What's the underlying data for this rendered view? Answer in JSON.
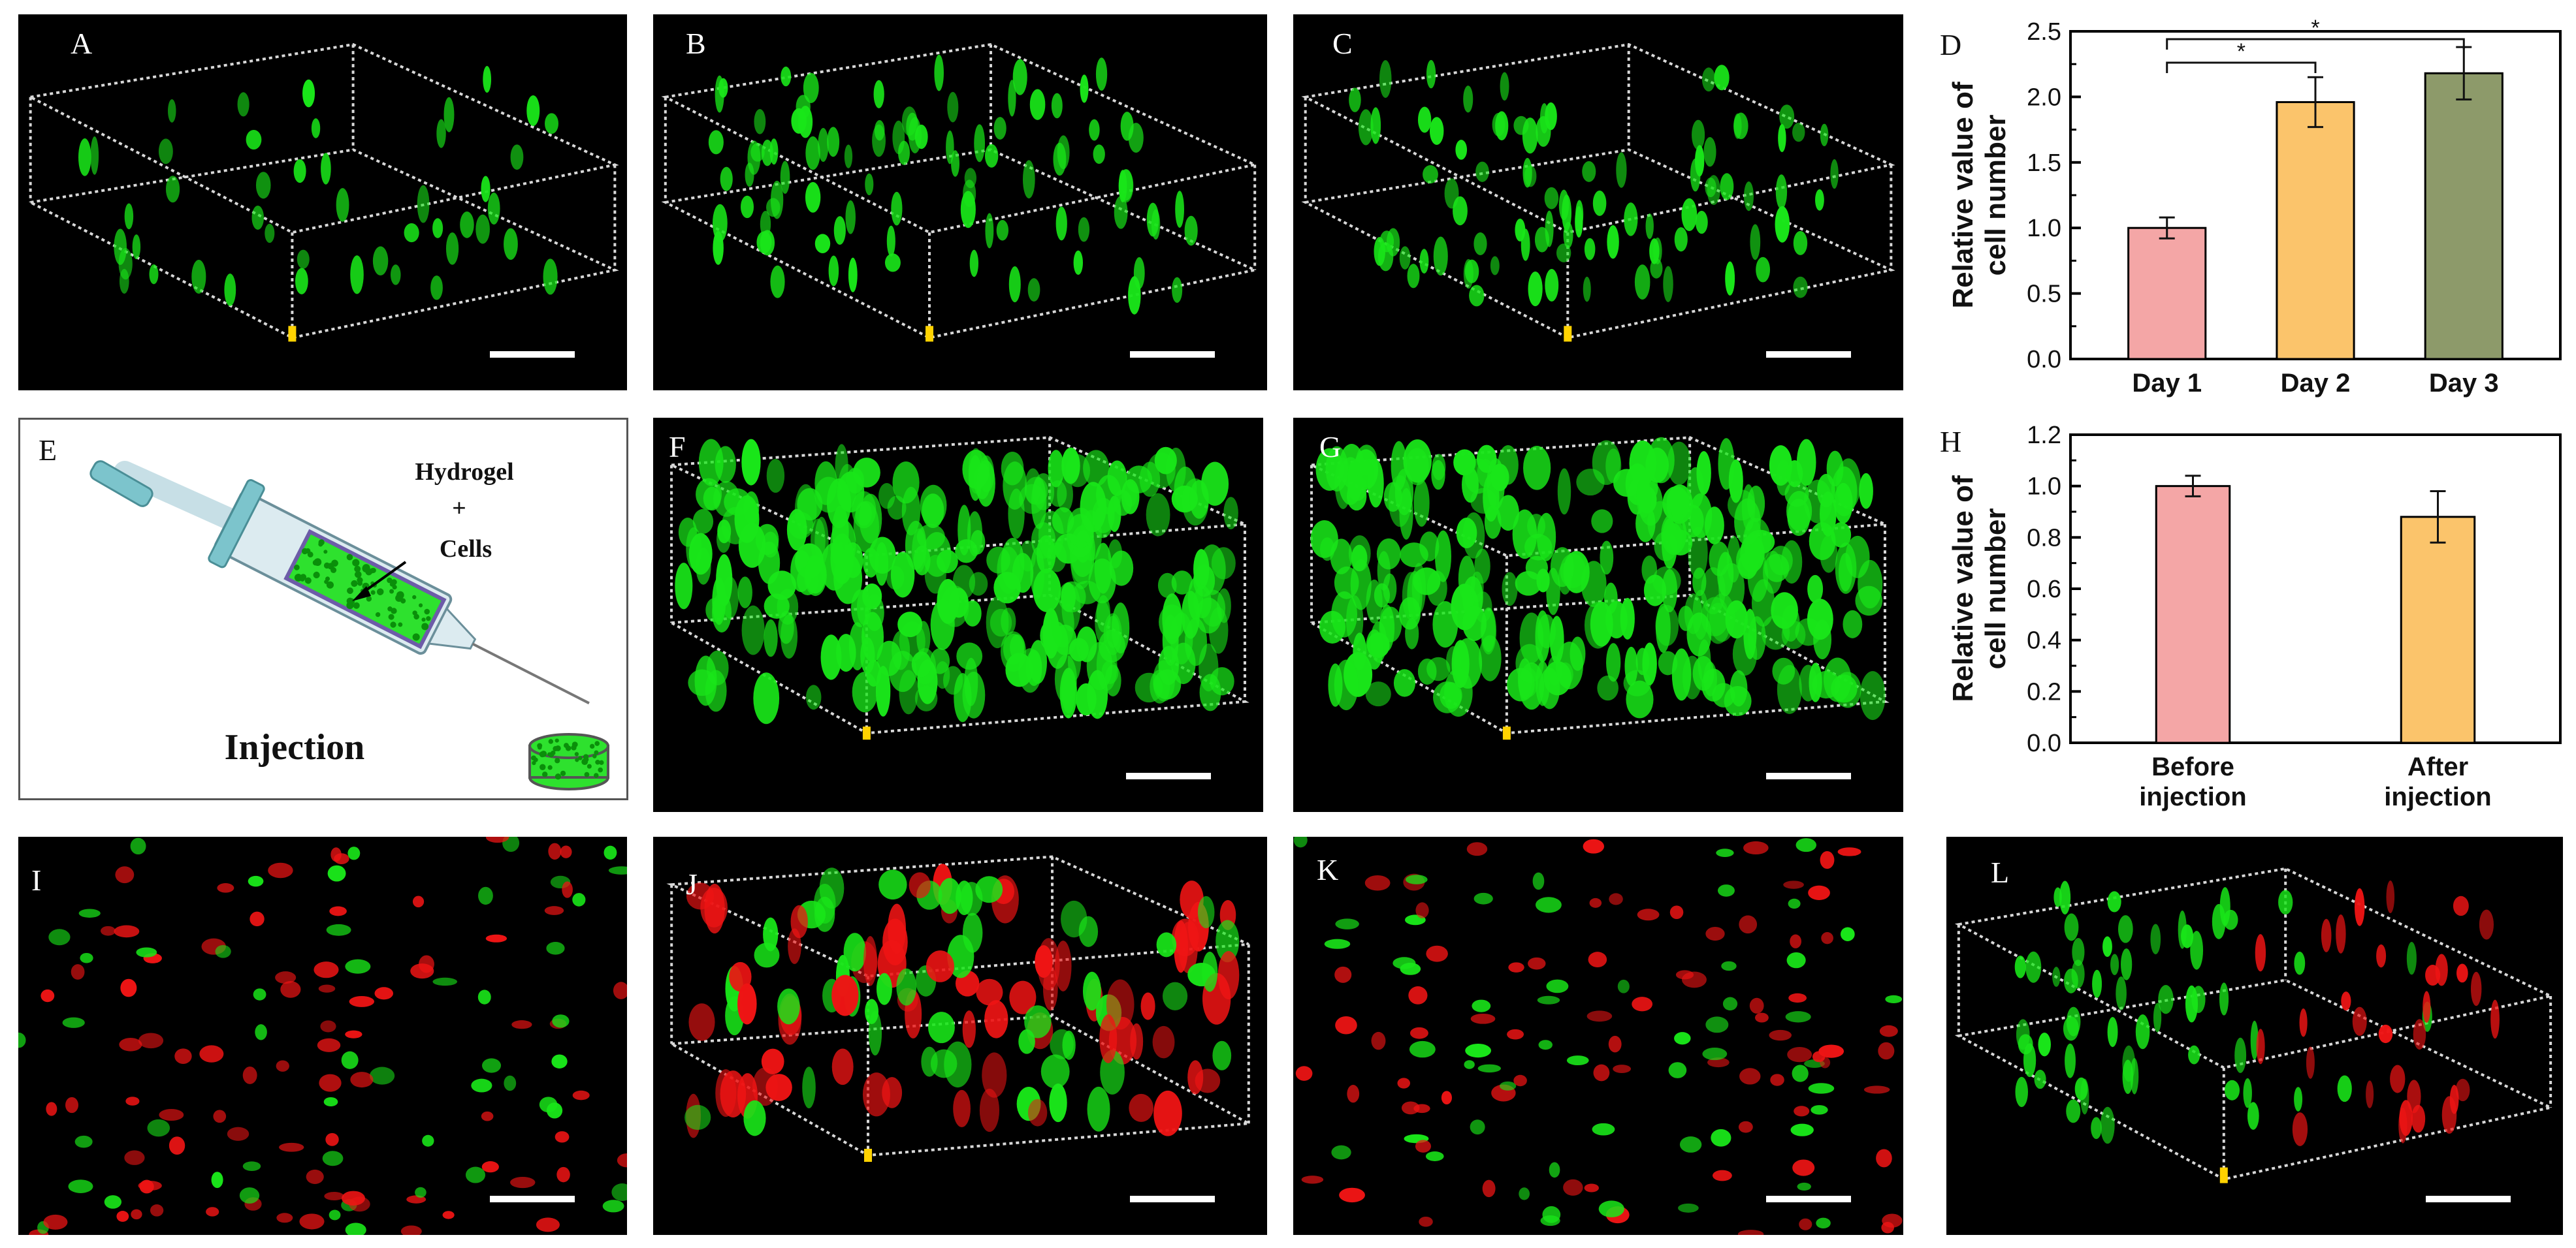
{
  "panels": {
    "A": {
      "label": "A"
    },
    "B": {
      "label": "B"
    },
    "C": {
      "label": "C"
    },
    "D": {
      "label": "D"
    },
    "E": {
      "label": "E",
      "hydrogel": "Hydrogel",
      "plus": "+",
      "cells": "Cells",
      "injection": "Injection"
    },
    "F": {
      "label": "F"
    },
    "G": {
      "label": "G"
    },
    "H": {
      "label": "H"
    },
    "I": {
      "label": "I"
    },
    "J": {
      "label": "J"
    },
    "K": {
      "label": "K"
    },
    "L": {
      "label": "L"
    }
  },
  "colors": {
    "green": "#19e619",
    "red": "#ee1414",
    "yellow": "#ffd200"
  },
  "chart_data": [
    {
      "id": "D",
      "type": "bar",
      "categories": [
        "Day 1",
        "Day 2",
        "Day 3"
      ],
      "values": [
        1.0,
        1.96,
        2.18
      ],
      "errors": [
        0.08,
        0.19,
        0.2
      ],
      "colors": [
        "#f4a6a6",
        "#fbc46b",
        "#8d9a6a"
      ],
      "ylabel": "Relative value of cell number",
      "ylim": [
        0,
        2.5
      ],
      "yticks": [
        "0.0",
        "0.5",
        "1.0",
        "1.5",
        "2.0",
        "2.5"
      ],
      "significance": [
        {
          "from": 0,
          "to": 1,
          "label": "*"
        },
        {
          "from": 0,
          "to": 2,
          "label": "*"
        }
      ]
    },
    {
      "id": "H",
      "type": "bar",
      "categories": [
        "Before injection",
        "After injection"
      ],
      "values": [
        1.0,
        0.88
      ],
      "errors": [
        0.04,
        0.1
      ],
      "colors": [
        "#f4a6a6",
        "#fbc46b"
      ],
      "ylabel": "Relative value of cell number",
      "ylim": [
        0,
        1.2
      ],
      "yticks": [
        "0.0",
        "0.2",
        "0.4",
        "0.6",
        "0.8",
        "1.0",
        "1.2"
      ]
    }
  ]
}
